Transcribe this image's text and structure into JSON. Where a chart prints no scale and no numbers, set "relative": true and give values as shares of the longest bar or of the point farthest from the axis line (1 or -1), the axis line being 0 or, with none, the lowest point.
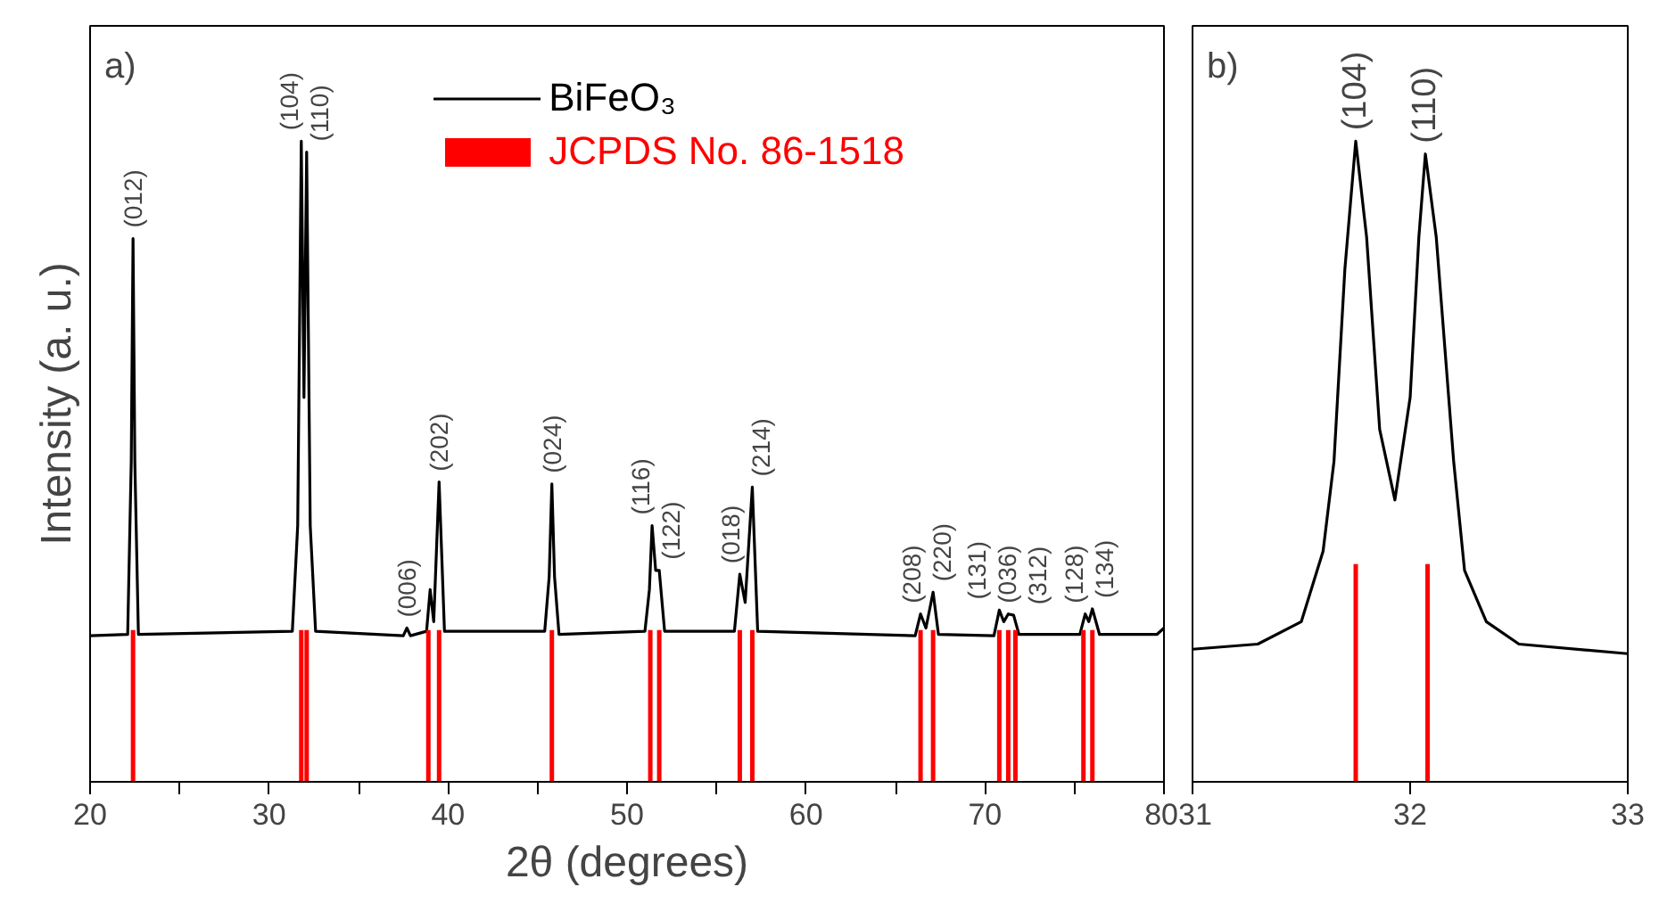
{
  "chart_data": [
    {
      "type": "line",
      "relative": true,
      "xlabel": "2θ (degrees)",
      "ylabel": "Intensity (a. u.)",
      "xlim": [
        20,
        80
      ],
      "xticks": [
        20,
        {
          "value": 25,
          "label": null
        },
        30,
        {
          "value": 35,
          "label": null
        },
        40,
        {
          "value": 45,
          "label": null
        },
        50,
        {
          "value": 55,
          "label": null
        },
        60,
        {
          "value": 65,
          "label": null
        },
        70,
        {
          "value": 75,
          "label": null
        },
        80
      ],
      "tick_labels": "x",
      "legend": "top",
      "grid": false,
      "annotations": [
        "a)",
        {
          "text": "(012)",
          "x": 22.4,
          "y": 0.848
        },
        {
          "text": "(104)",
          "x": 31.8,
          "y": 1.0
        },
        {
          "text": "(110)",
          "x": 32.1,
          "y": 0.983
        },
        {
          "text": "(006)",
          "x": 37.7,
          "y": 0.24
        },
        {
          "text": "(202)",
          "x": 39.5,
          "y": 0.468
        },
        {
          "text": "(024)",
          "x": 45.8,
          "y": 0.465
        },
        {
          "text": "(116)",
          "x": 51.4,
          "y": 0.4
        },
        {
          "text": "(122)",
          "x": 51.8,
          "y": 0.33
        },
        {
          "text": "(018)",
          "x": 56.3,
          "y": 0.324
        },
        {
          "text": "(214)",
          "x": 57.0,
          "y": 0.46
        },
        {
          "text": "(208)",
          "x": 66.4,
          "y": 0.262
        },
        {
          "text": "(220)",
          "x": 67.1,
          "y": 0.296
        },
        {
          "text": "(131)",
          "x": 70.8,
          "y": 0.268
        },
        {
          "text": "(036)",
          "x": 71.3,
          "y": 0.262
        },
        {
          "text": "(312)",
          "x": 71.6,
          "y": 0.26
        },
        {
          "text": "(128)",
          "x": 75.6,
          "y": 0.262
        },
        {
          "text": "(134)",
          "x": 76.0,
          "y": 0.27
        }
      ],
      "series": [
        {
          "name": "BiFeO₃",
          "color": "#000000",
          "x": [
            20,
            22.1,
            22.3,
            22.4,
            22.5,
            22.7,
            31.3,
            31.6,
            31.8,
            31.95,
            32.1,
            32.3,
            32.6,
            37.5,
            37.7,
            37.9,
            38.8,
            39.0,
            39.2,
            39.5,
            39.8,
            45.4,
            45.65,
            45.8,
            45.95,
            46.2,
            51.0,
            51.25,
            51.4,
            51.6,
            51.8,
            52.1,
            56.0,
            56.3,
            56.6,
            57.0,
            57.3,
            66.1,
            66.4,
            66.7,
            67.1,
            67.4,
            70.5,
            70.8,
            71.05,
            71.3,
            71.6,
            71.9,
            75.3,
            75.6,
            75.8,
            76.0,
            76.4,
            79.6,
            80
          ],
          "values": [
            0.228,
            0.23,
            0.5,
            0.848,
            0.5,
            0.23,
            0.235,
            0.4,
            1.0,
            0.6,
            0.983,
            0.4,
            0.235,
            0.228,
            0.24,
            0.228,
            0.235,
            0.3,
            0.25,
            0.468,
            0.235,
            0.235,
            0.32,
            0.465,
            0.32,
            0.23,
            0.235,
            0.3,
            0.4,
            0.33,
            0.33,
            0.235,
            0.235,
            0.324,
            0.28,
            0.46,
            0.235,
            0.228,
            0.262,
            0.24,
            0.296,
            0.23,
            0.228,
            0.268,
            0.25,
            0.262,
            0.26,
            0.23,
            0.23,
            0.262,
            0.25,
            0.27,
            0.23,
            0.23,
            0.24
          ]
        },
        {
          "name": "JCPDS No. 86-1518",
          "type": "bar",
          "color": "#ff0000",
          "x": [
            22.4,
            31.8,
            32.1,
            38.9,
            39.5,
            45.8,
            51.3,
            51.8,
            56.3,
            57.0,
            66.4,
            67.1,
            70.8,
            71.3,
            71.7,
            75.5,
            76.0
          ],
          "values": [
            0.237,
            0.237,
            0.237,
            0.237,
            0.237,
            0.237,
            0.237,
            0.237,
            0.237,
            0.237,
            0.237,
            0.237,
            0.237,
            0.237,
            0.237,
            0.237,
            0.237
          ]
        }
      ]
    },
    {
      "type": "line",
      "relative": true,
      "xlim": [
        31,
        33
      ],
      "xticks": [
        31,
        32,
        33
      ],
      "tick_labels": "x",
      "grid": false,
      "annotations": [
        "b)",
        {
          "text": "(104)",
          "x": 31.75,
          "y": 1.0
        },
        {
          "text": "(110)",
          "x": 32.07,
          "y": 0.98
        }
      ],
      "series": [
        {
          "color": "#000000",
          "x": [
            31,
            31.3,
            31.5,
            31.6,
            31.65,
            31.7,
            31.75,
            31.8,
            31.86,
            31.93,
            32.0,
            32.04,
            32.07,
            32.12,
            32.2,
            32.25,
            32.35,
            32.5,
            33
          ],
          "values": [
            0.207,
            0.215,
            0.25,
            0.36,
            0.5,
            0.8,
            1.0,
            0.85,
            0.55,
            0.44,
            0.6,
            0.85,
            0.98,
            0.85,
            0.5,
            0.33,
            0.25,
            0.215,
            0.2
          ]
        },
        {
          "type": "bar",
          "color": "#ff0000",
          "x": [
            31.75,
            32.08
          ],
          "values": [
            0.34,
            0.34
          ]
        }
      ]
    }
  ]
}
